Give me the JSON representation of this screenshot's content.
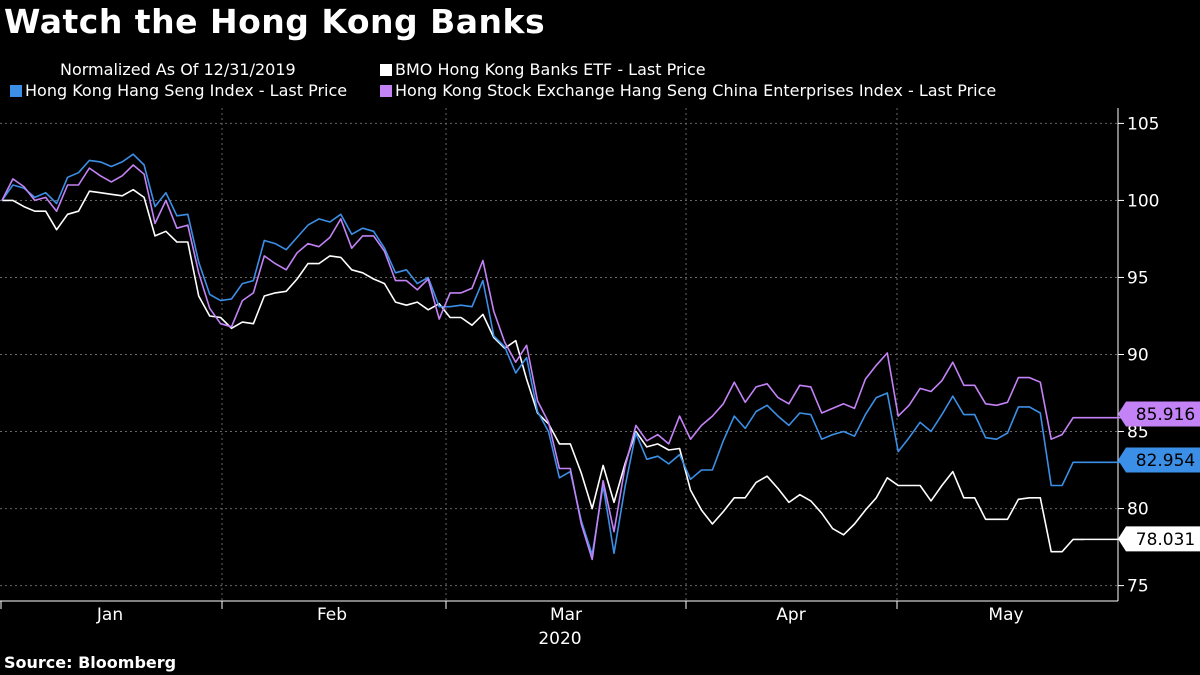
{
  "title": "Watch the Hong Kong Banks",
  "source": "Source: Bloomberg",
  "legend": {
    "note": "Normalized As Of 12/31/2019",
    "items": [
      {
        "label": "BMO Hong Kong Banks ETF - Last Price",
        "color": "#ffffff"
      },
      {
        "label": "Hong Kong Hang Seng Index - Last Price",
        "color": "#3c8fe6"
      },
      {
        "label": "Hong Kong Stock Exchange Hang Seng China Enterprises Index - Last Price",
        "color": "#c382f5"
      }
    ]
  },
  "chart_data": {
    "type": "line",
    "xlabel": "2020",
    "ylabel": "",
    "ylim": [
      74,
      106
    ],
    "yticks": [
      75,
      80,
      85,
      90,
      95,
      100,
      105
    ],
    "xtick_labels": [
      "Jan",
      "Feb",
      "Mar",
      "Apr",
      "May"
    ],
    "year_label": "2020",
    "grid": true,
    "x_count": 100,
    "series": [
      {
        "name": "BMO Hong Kong Banks ETF - Last Price",
        "color": "#ffffff",
        "last_value": "78.031",
        "values": [
          100.0,
          100.0,
          99.6,
          99.3,
          99.3,
          98.1,
          99.1,
          99.3,
          100.6,
          100.5,
          100.4,
          100.3,
          100.7,
          100.2,
          97.7,
          98.0,
          97.3,
          97.3,
          93.8,
          92.5,
          92.4,
          91.7,
          92.1,
          92.0,
          93.8,
          94.0,
          94.1,
          94.9,
          95.9,
          95.9,
          96.4,
          96.3,
          95.5,
          95.3,
          94.9,
          94.6,
          93.4,
          93.2,
          93.4,
          92.9,
          93.3,
          92.4,
          92.4,
          91.9,
          92.6,
          91.1,
          90.4,
          90.9,
          88.4,
          86.2,
          85.5,
          84.2,
          84.2,
          82.3,
          80.0,
          82.8,
          80.4,
          82.9,
          85.0,
          84.0,
          84.2,
          83.8,
          83.9,
          81.2,
          79.9,
          79.0,
          79.8,
          80.7,
          80.7,
          81.7,
          82.1,
          81.3,
          80.4,
          80.9,
          80.5,
          79.7,
          78.7,
          78.3,
          79.0,
          79.9,
          80.7,
          82.0,
          81.5,
          81.5,
          81.5,
          80.5,
          81.5,
          82.4,
          80.7,
          80.7,
          79.3,
          79.3,
          79.3,
          80.6,
          80.7,
          80.7,
          77.2,
          77.2,
          78.0,
          78.0
        ]
      },
      {
        "name": "Hong Kong Hang Seng Index - Last Price",
        "color": "#3c8fe6",
        "last_value": "82.954",
        "values": [
          100.0,
          101.0,
          100.8,
          100.2,
          100.5,
          99.8,
          101.5,
          101.8,
          102.6,
          102.5,
          102.2,
          102.5,
          103.0,
          102.3,
          99.6,
          100.5,
          99.0,
          99.1,
          96.0,
          93.9,
          93.5,
          93.6,
          94.6,
          94.8,
          97.4,
          97.2,
          96.8,
          97.6,
          98.4,
          98.8,
          98.6,
          99.1,
          97.8,
          98.2,
          98.0,
          96.9,
          95.3,
          95.5,
          94.6,
          95.0,
          93.1,
          93.1,
          93.2,
          93.1,
          94.8,
          91.2,
          90.5,
          88.8,
          89.8,
          86.3,
          85.0,
          82.0,
          82.4,
          79.2,
          77.0,
          81.5,
          77.1,
          81.4,
          84.9,
          83.2,
          83.4,
          82.9,
          83.5,
          81.9,
          82.5,
          82.5,
          84.4,
          86.0,
          85.2,
          86.3,
          86.7,
          86.0,
          85.4,
          86.2,
          86.1,
          84.5,
          84.8,
          85.0,
          84.7,
          86.1,
          87.2,
          87.5,
          83.7,
          84.6,
          85.6,
          85.0,
          86.1,
          87.3,
          86.1,
          86.1,
          84.6,
          84.5,
          84.9,
          86.6,
          86.6,
          86.2,
          81.5,
          81.5,
          83.0,
          83.0
        ]
      },
      {
        "name": "Hong Kong Stock Exchange Hang Seng China Enterprises Index - Last Price",
        "color": "#c382f5",
        "last_value": "85.916",
        "values": [
          100.0,
          101.4,
          100.9,
          100.0,
          100.2,
          99.3,
          101.0,
          101.0,
          102.1,
          101.6,
          101.2,
          101.6,
          102.3,
          101.7,
          98.5,
          100.0,
          98.2,
          98.4,
          95.3,
          93.0,
          92.0,
          91.8,
          93.5,
          94.0,
          96.4,
          95.9,
          95.5,
          96.6,
          97.2,
          97.0,
          97.6,
          98.8,
          96.9,
          97.7,
          97.7,
          96.7,
          94.8,
          94.8,
          94.2,
          94.9,
          92.3,
          94.0,
          94.0,
          94.3,
          96.1,
          92.8,
          90.8,
          89.5,
          90.6,
          87.0,
          85.6,
          82.6,
          82.6,
          79.0,
          76.7,
          81.8,
          78.5,
          82.7,
          85.4,
          84.4,
          84.8,
          84.2,
          86.0,
          84.5,
          85.4,
          86.0,
          86.8,
          88.2,
          86.9,
          87.9,
          88.1,
          87.2,
          86.8,
          88.0,
          87.9,
          86.2,
          86.5,
          86.8,
          86.5,
          88.4,
          89.3,
          90.1,
          86.0,
          86.7,
          87.8,
          87.6,
          88.3,
          89.5,
          88.0,
          88.0,
          86.8,
          86.7,
          86.9,
          88.5,
          88.5,
          88.2,
          84.5,
          84.8,
          85.9,
          85.9
        ]
      }
    ]
  }
}
